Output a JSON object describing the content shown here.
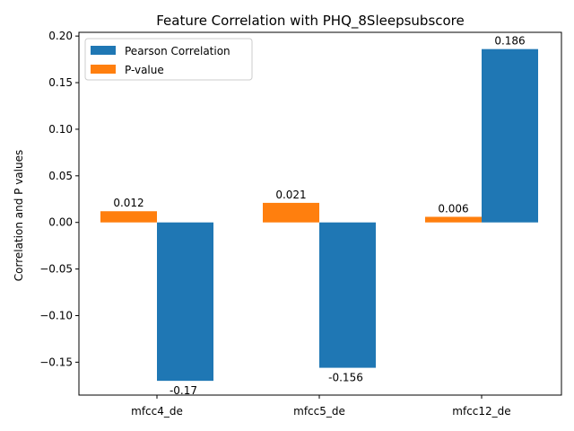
{
  "chart_data": {
    "type": "bar",
    "title": "Feature Correlation with PHQ_8Sleepsubscore",
    "xlabel": "",
    "ylabel": "Correlation and P values",
    "categories": [
      "mfcc4_de",
      "mfcc5_de",
      "mfcc12_de"
    ],
    "series": [
      {
        "name": "P-value",
        "values": [
          0.012,
          0.021,
          0.006
        ],
        "labels": [
          "0.012",
          "0.021",
          "0.006"
        ],
        "color": "#ff7f0e"
      },
      {
        "name": "Pearson Correlation",
        "values": [
          -0.17,
          -0.156,
          0.186
        ],
        "labels": [
          "-0.17",
          "-0.156",
          "0.186"
        ],
        "color": "#1f77b4"
      }
    ],
    "ylim": [
      -0.1853,
      0.204
    ],
    "yticks": [
      -0.15,
      -0.1,
      -0.05,
      0.0,
      0.05,
      0.1,
      0.15,
      0.2
    ],
    "ytick_labels": [
      "−0.15",
      "−0.10",
      "−0.05",
      "0.00",
      "0.05",
      "0.10",
      "0.15",
      "0.20"
    ],
    "grid": false,
    "legend": {
      "placement": "top-left",
      "entries": [
        {
          "label": "Pearson Correlation",
          "color": "#1f77b4"
        },
        {
          "label": "P-value",
          "color": "#ff7f0e"
        }
      ]
    }
  }
}
